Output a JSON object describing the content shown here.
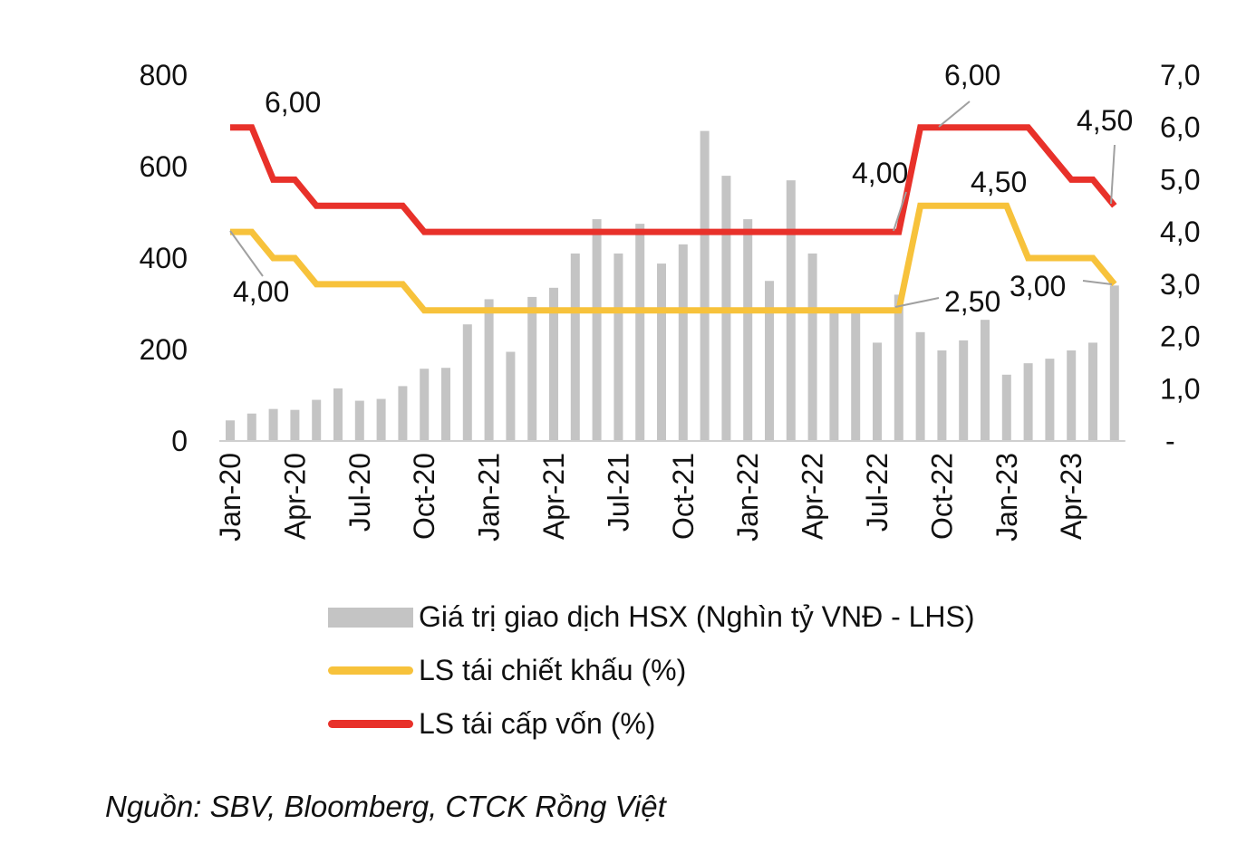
{
  "chart_data": {
    "type": "bar+line",
    "x": [
      "Jan-20",
      "Feb-20",
      "Mar-20",
      "Apr-20",
      "May-20",
      "Jun-20",
      "Jul-20",
      "Aug-20",
      "Sep-20",
      "Oct-20",
      "Nov-20",
      "Dec-20",
      "Jan-21",
      "Feb-21",
      "Mar-21",
      "Apr-21",
      "May-21",
      "Jun-21",
      "Jul-21",
      "Aug-21",
      "Sep-21",
      "Oct-21",
      "Nov-21",
      "Dec-21",
      "Jan-22",
      "Feb-22",
      "Mar-22",
      "Apr-22",
      "May-22",
      "Jun-22",
      "Jul-22",
      "Aug-22",
      "Sep-22",
      "Oct-22",
      "Nov-22",
      "Dec-22",
      "Jan-23",
      "Feb-23",
      "Mar-23",
      "Apr-23",
      "May-23",
      "Jun-23"
    ],
    "x_tick_labels": [
      "Jan-20",
      "Apr-20",
      "Jul-20",
      "Oct-20",
      "Jan-21",
      "Apr-21",
      "Jul-21",
      "Oct-21",
      "Jan-22",
      "Apr-22",
      "Jul-22",
      "Oct-22",
      "Jan-23",
      "Apr-23"
    ],
    "series": [
      {
        "name": "Giá trị giao dịch HSX (Nghìn tỷ VNĐ - LHS)",
        "type": "bar",
        "axis": "left",
        "color": "#c4c4c4",
        "values": [
          45,
          60,
          70,
          68,
          90,
          115,
          88,
          92,
          120,
          158,
          160,
          255,
          310,
          195,
          315,
          335,
          410,
          485,
          410,
          475,
          388,
          430,
          678,
          580,
          485,
          350,
          570,
          410,
          285,
          285,
          215,
          320,
          238,
          198,
          220,
          265,
          145,
          170,
          180,
          198,
          215,
          340
        ]
      },
      {
        "name": "LS tái chiết khấu (%)",
        "type": "line",
        "axis": "right",
        "color": "#f7c23b",
        "values": [
          4.0,
          4.0,
          3.5,
          3.5,
          3.0,
          3.0,
          3.0,
          3.0,
          3.0,
          2.5,
          2.5,
          2.5,
          2.5,
          2.5,
          2.5,
          2.5,
          2.5,
          2.5,
          2.5,
          2.5,
          2.5,
          2.5,
          2.5,
          2.5,
          2.5,
          2.5,
          2.5,
          2.5,
          2.5,
          2.5,
          2.5,
          2.5,
          4.5,
          4.5,
          4.5,
          4.5,
          4.5,
          3.5,
          3.5,
          3.5,
          3.5,
          3.0
        ]
      },
      {
        "name": "LS tái cấp vốn (%)",
        "type": "line",
        "axis": "right",
        "color": "#e8312a",
        "values": [
          6.0,
          6.0,
          5.0,
          5.0,
          4.5,
          4.5,
          4.5,
          4.5,
          4.5,
          4.0,
          4.0,
          4.0,
          4.0,
          4.0,
          4.0,
          4.0,
          4.0,
          4.0,
          4.0,
          4.0,
          4.0,
          4.0,
          4.0,
          4.0,
          4.0,
          4.0,
          4.0,
          4.0,
          4.0,
          4.0,
          4.0,
          4.0,
          6.0,
          6.0,
          6.0,
          6.0,
          6.0,
          6.0,
          5.5,
          5.0,
          5.0,
          4.5
        ]
      }
    ],
    "y_left": {
      "range": [
        0,
        800
      ],
      "ticks": [
        "0",
        "200",
        "400",
        "600",
        "800"
      ]
    },
    "y_right": {
      "range": [
        0,
        7
      ],
      "ticks": [
        "-",
        "1,0",
        "2,0",
        "3,0",
        "4,0",
        "5,0",
        "6,0",
        "7,0"
      ]
    },
    "annotations": [
      {
        "text": "6,00",
        "series": "LS tái cấp vốn (%)",
        "x": "Jan-20"
      },
      {
        "text": "4,00",
        "series": "LS tái chiết khấu (%)",
        "x": "Jan-20"
      },
      {
        "text": "4,00",
        "series": "LS tái cấp vốn (%)",
        "x": "Aug-22"
      },
      {
        "text": "2,50",
        "series": "LS tái chiết khấu (%)",
        "x": "Aug-22"
      },
      {
        "text": "6,00",
        "series": "LS tái cấp vốn (%)",
        "x": "Sep-22"
      },
      {
        "text": "4,50",
        "series": "LS tái chiết khấu (%)",
        "x": "Nov-22"
      },
      {
        "text": "4,50",
        "series": "LS tái cấp vốn (%)",
        "x": "Jun-23"
      },
      {
        "text": "3,00",
        "series": "LS tái chiết khấu (%)",
        "x": "Jun-23"
      }
    ],
    "legend": "bottom"
  },
  "legend": {
    "bar_label": "Giá trị giao dịch HSX (Nghìn tỷ VNĐ - LHS)",
    "discount_label": "LS tái chiết khấu (%)",
    "refinance_label": "LS tái cấp vốn (%)"
  },
  "source": "Nguồn: SBV, Bloomberg, CTCK Rồng Việt"
}
